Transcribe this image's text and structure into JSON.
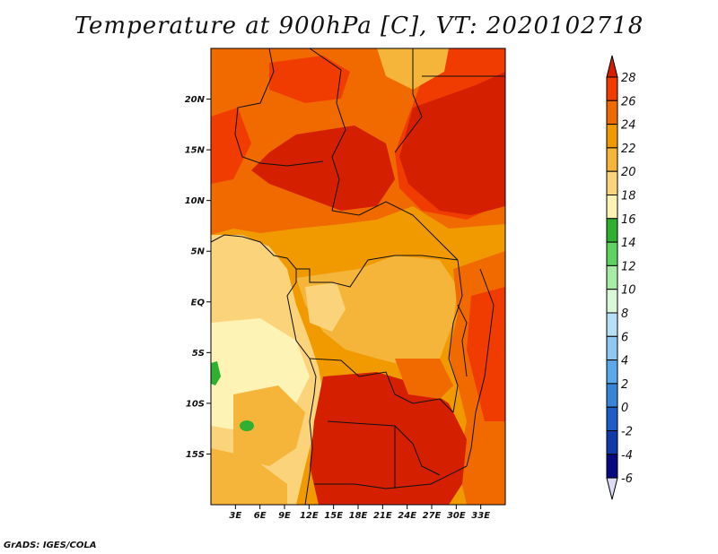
{
  "title": "Temperature at 900hPa [C], VT: 2020102718",
  "credit": "GrADS: IGES/COLA",
  "map": {
    "lon_range": [
      0,
      36
    ],
    "lat_range": [
      -20,
      25
    ],
    "lat_ticks": [
      {
        "value": 20,
        "label": "20N"
      },
      {
        "value": 15,
        "label": "15N"
      },
      {
        "value": 10,
        "label": "10N"
      },
      {
        "value": 5,
        "label": "5N"
      },
      {
        "value": 0,
        "label": "EQ"
      },
      {
        "value": -5,
        "label": "5S"
      },
      {
        "value": -10,
        "label": "10S"
      },
      {
        "value": -15,
        "label": "15S"
      }
    ],
    "lon_ticks": [
      {
        "value": 3,
        "label": "3E"
      },
      {
        "value": 6,
        "label": "6E"
      },
      {
        "value": 9,
        "label": "9E"
      },
      {
        "value": 12,
        "label": "12E"
      },
      {
        "value": 15,
        "label": "15E"
      },
      {
        "value": 18,
        "label": "18E"
      },
      {
        "value": 21,
        "label": "21E"
      },
      {
        "value": 24,
        "label": "24E"
      },
      {
        "value": 27,
        "label": "27E"
      },
      {
        "value": 30,
        "label": "30E"
      },
      {
        "value": 33,
        "label": "33E"
      }
    ]
  },
  "colorbar": {
    "levels": [
      28,
      26,
      24,
      22,
      20,
      18,
      16,
      14,
      12,
      10,
      8,
      6,
      4,
      2,
      0,
      -2,
      -4,
      -6
    ],
    "colors": [
      "#d42000",
      "#f03c00",
      "#f06a00",
      "#f09a00",
      "#f5b43a",
      "#fad37a",
      "#fdf3b4",
      "#30b030",
      "#5fd35f",
      "#a6eca6",
      "#d8f8d8",
      "#b7e0f7",
      "#8ec8f0",
      "#5ca8e8",
      "#3a84d8",
      "#1e5cc8",
      "#103aa8",
      "#080880",
      "#dcdcf5"
    ]
  }
}
